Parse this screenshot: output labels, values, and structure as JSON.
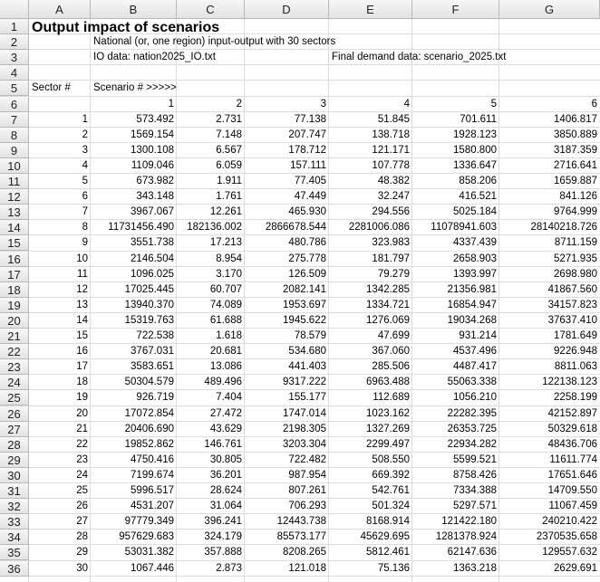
{
  "columns": [
    "A",
    "B",
    "C",
    "D",
    "E",
    "F",
    "G"
  ],
  "row_numbers": [
    1,
    2,
    3,
    4,
    5,
    6,
    7,
    8,
    9,
    10,
    11,
    12,
    13,
    14,
    15,
    16,
    17,
    18,
    19,
    20,
    21,
    22,
    23,
    24,
    25,
    26,
    27,
    28,
    29,
    30,
    31,
    32,
    33,
    34,
    35,
    36
  ],
  "title": "Output impact of scenarios",
  "subtitle": "National (or, one region) input-output with 30 sectors",
  "io_data": "IO data:  nation2025_IO.txt",
  "final_demand": "Final demand data:  scenario_2025.txt",
  "sector_label": "Sector #",
  "scenario_label": "Scenario # >>>>>",
  "scenarios": [
    1,
    2,
    3,
    4,
    5,
    6
  ],
  "rows": [
    {
      "sector": 1,
      "values": [
        "573.492",
        "2.731",
        "77.138",
        "51.845",
        "701.611",
        "1406.817"
      ]
    },
    {
      "sector": 2,
      "values": [
        "1569.154",
        "7.148",
        "207.747",
        "138.718",
        "1928.123",
        "3850.889"
      ]
    },
    {
      "sector": 3,
      "values": [
        "1300.108",
        "6.567",
        "178.712",
        "121.171",
        "1580.800",
        "3187.359"
      ]
    },
    {
      "sector": 4,
      "values": [
        "1109.046",
        "6.059",
        "157.111",
        "107.778",
        "1336.647",
        "2716.641"
      ]
    },
    {
      "sector": 5,
      "values": [
        "673.982",
        "1.911",
        "77.405",
        "48.382",
        "858.206",
        "1659.887"
      ]
    },
    {
      "sector": 6,
      "values": [
        "343.148",
        "1.761",
        "47.449",
        "32.247",
        "416.521",
        "841.126"
      ]
    },
    {
      "sector": 7,
      "values": [
        "3967.067",
        "12.261",
        "465.930",
        "294.556",
        "5025.184",
        "9764.999"
      ]
    },
    {
      "sector": 8,
      "values": [
        "11731456.490",
        "182136.002",
        "2866678.544",
        "2281006.086",
        "11078941.603",
        "28140218.726"
      ]
    },
    {
      "sector": 9,
      "values": [
        "3551.738",
        "17.213",
        "480.786",
        "323.983",
        "4337.439",
        "8711.159"
      ]
    },
    {
      "sector": 10,
      "values": [
        "2146.504",
        "8.954",
        "275.778",
        "181.797",
        "2658.903",
        "5271.935"
      ]
    },
    {
      "sector": 11,
      "values": [
        "1096.025",
        "3.170",
        "126.509",
        "79.279",
        "1393.997",
        "2698.980"
      ]
    },
    {
      "sector": 12,
      "values": [
        "17025.445",
        "60.707",
        "2082.141",
        "1342.285",
        "21356.981",
        "41867.560"
      ]
    },
    {
      "sector": 13,
      "values": [
        "13940.370",
        "74.089",
        "1953.697",
        "1334.721",
        "16854.947",
        "34157.823"
      ]
    },
    {
      "sector": 14,
      "values": [
        "15319.763",
        "61.688",
        "1945.622",
        "1276.069",
        "19034.268",
        "37637.410"
      ]
    },
    {
      "sector": 15,
      "values": [
        "722.538",
        "1.618",
        "78.579",
        "47.699",
        "931.214",
        "1781.649"
      ]
    },
    {
      "sector": 16,
      "values": [
        "3767.031",
        "20.681",
        "534.680",
        "367.060",
        "4537.496",
        "9226.948"
      ]
    },
    {
      "sector": 17,
      "values": [
        "3583.651",
        "13.086",
        "441.403",
        "285.506",
        "4487.417",
        "8811.063"
      ]
    },
    {
      "sector": 18,
      "values": [
        "50304.579",
        "489.496",
        "9317.222",
        "6963.488",
        "55063.338",
        "122138.123"
      ]
    },
    {
      "sector": 19,
      "values": [
        "926.719",
        "7.404",
        "155.177",
        "112.689",
        "1056.210",
        "2258.199"
      ]
    },
    {
      "sector": 20,
      "values": [
        "17072.854",
        "27.472",
        "1747.014",
        "1023.162",
        "22282.395",
        "42152.897"
      ]
    },
    {
      "sector": 21,
      "values": [
        "20406.690",
        "43.629",
        "2198.305",
        "1327.269",
        "26353.725",
        "50329.618"
      ]
    },
    {
      "sector": 22,
      "values": [
        "19852.862",
        "146.761",
        "3203.304",
        "2299.497",
        "22934.282",
        "48436.706"
      ]
    },
    {
      "sector": 23,
      "values": [
        "4750.416",
        "30.805",
        "722.482",
        "508.550",
        "5599.521",
        "11611.774"
      ]
    },
    {
      "sector": 24,
      "values": [
        "7199.674",
        "36.201",
        "987.954",
        "669.392",
        "8758.426",
        "17651.646"
      ]
    },
    {
      "sector": 25,
      "values": [
        "5996.517",
        "28.624",
        "807.261",
        "542.761",
        "7334.388",
        "14709.550"
      ]
    },
    {
      "sector": 26,
      "values": [
        "4531.207",
        "31.064",
        "706.293",
        "501.324",
        "5297.571",
        "11067.459"
      ]
    },
    {
      "sector": 27,
      "values": [
        "97779.349",
        "396.241",
        "12443.738",
        "8168.914",
        "121422.180",
        "240210.422"
      ]
    },
    {
      "sector": 28,
      "values": [
        "957629.683",
        "324.179",
        "85573.177",
        "45629.695",
        "1281378.924",
        "2370535.658"
      ]
    },
    {
      "sector": 29,
      "values": [
        "53031.382",
        "357.888",
        "8208.265",
        "5812.461",
        "62147.636",
        "129557.632"
      ]
    },
    {
      "sector": 30,
      "values": [
        "1067.446",
        "2.873",
        "121.018",
        "75.136",
        "1363.218",
        "2629.691"
      ]
    }
  ]
}
